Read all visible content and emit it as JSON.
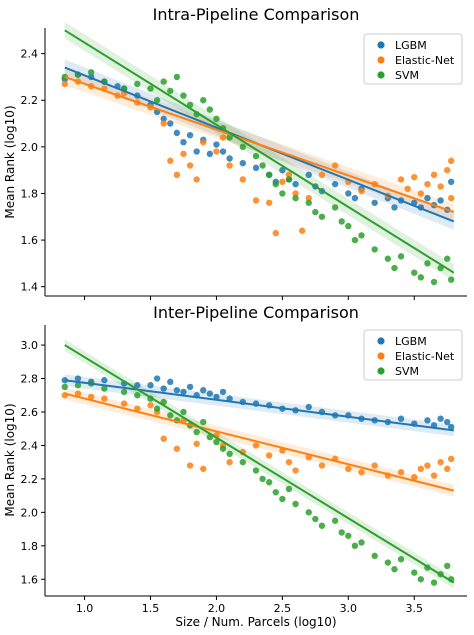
{
  "colors": {
    "LGBM": "#1f77b4",
    "Elastic-Net": "#ff7f0e",
    "SVM": "#2ca02c"
  },
  "xlabel": "Size / Num. Parcels (log10)",
  "xticks": [
    "1.0",
    "1.5",
    "2.0",
    "2.5",
    "3.0",
    "3.5"
  ],
  "chart_data": [
    {
      "type": "scatter",
      "title": "Intra-Pipeline Comparison",
      "xlabel": "",
      "ylabel": "Mean Rank (log10)",
      "xlim": [
        0.7,
        3.9
      ],
      "ylim": [
        1.36,
        2.51
      ],
      "yticks": [
        "1.4",
        "1.6",
        "1.8",
        "2.0",
        "2.2",
        "2.4"
      ],
      "legend_position": "top-right",
      "series": [
        {
          "name": "LGBM",
          "trend": [
            [
              0.85,
              2.34
            ],
            [
              3.8,
              1.68
            ]
          ],
          "points": [
            [
              0.85,
              2.29
            ],
            [
              0.95,
              2.31
            ],
            [
              1.05,
              2.3
            ],
            [
              1.15,
              2.28
            ],
            [
              1.25,
              2.26
            ],
            [
              1.3,
              2.25
            ],
            [
              1.4,
              2.22
            ],
            [
              1.5,
              2.18
            ],
            [
              1.55,
              2.15
            ],
            [
              1.6,
              2.12
            ],
            [
              1.65,
              2.1
            ],
            [
              1.7,
              2.06
            ],
            [
              1.75,
              2.02
            ],
            [
              1.8,
              2.05
            ],
            [
              1.85,
              1.98
            ],
            [
              1.9,
              2.03
            ],
            [
              1.95,
              1.97
            ],
            [
              2.0,
              2.01
            ],
            [
              2.05,
              1.98
            ],
            [
              2.1,
              1.95
            ],
            [
              2.2,
              1.93
            ],
            [
              2.3,
              1.91
            ],
            [
              2.4,
              1.88
            ],
            [
              2.45,
              1.85
            ],
            [
              2.5,
              1.9
            ],
            [
              2.55,
              1.86
            ],
            [
              2.6,
              1.84
            ],
            [
              2.7,
              1.88
            ],
            [
              2.75,
              1.83
            ],
            [
              2.8,
              1.81
            ],
            [
              2.9,
              1.84
            ],
            [
              3.0,
              1.8
            ],
            [
              3.05,
              1.78
            ],
            [
              3.1,
              1.82
            ],
            [
              3.2,
              1.76
            ],
            [
              3.3,
              1.78
            ],
            [
              3.35,
              1.74
            ],
            [
              3.4,
              1.77
            ],
            [
              3.5,
              1.76
            ],
            [
              3.55,
              1.74
            ],
            [
              3.6,
              1.78
            ],
            [
              3.65,
              1.75
            ],
            [
              3.7,
              1.77
            ],
            [
              3.75,
              1.73
            ],
            [
              3.78,
              1.85
            ]
          ]
        },
        {
          "name": "Elastic-Net",
          "trend": [
            [
              0.85,
              2.3
            ],
            [
              3.8,
              1.72
            ]
          ],
          "points": [
            [
              0.85,
              2.27
            ],
            [
              0.95,
              2.28
            ],
            [
              1.05,
              2.26
            ],
            [
              1.15,
              2.25
            ],
            [
              1.25,
              2.22
            ],
            [
              1.3,
              2.23
            ],
            [
              1.4,
              2.19
            ],
            [
              1.5,
              2.17
            ],
            [
              1.6,
              2.1
            ],
            [
              1.65,
              1.94
            ],
            [
              1.7,
              1.88
            ],
            [
              1.75,
              1.97
            ],
            [
              1.8,
              1.92
            ],
            [
              1.85,
              1.86
            ],
            [
              1.9,
              2.02
            ],
            [
              2.0,
              1.98
            ],
            [
              2.05,
              2.04
            ],
            [
              2.1,
              1.92
            ],
            [
              2.2,
              1.86
            ],
            [
              2.3,
              1.77
            ],
            [
              2.4,
              1.76
            ],
            [
              2.45,
              1.63
            ],
            [
              2.5,
              1.85
            ],
            [
              2.55,
              1.88
            ],
            [
              2.6,
              1.8
            ],
            [
              2.65,
              1.64
            ],
            [
              2.7,
              1.78
            ],
            [
              2.8,
              1.88
            ],
            [
              2.9,
              1.92
            ],
            [
              3.0,
              1.85
            ],
            [
              3.1,
              1.81
            ],
            [
              3.2,
              1.84
            ],
            [
              3.3,
              1.79
            ],
            [
              3.4,
              1.86
            ],
            [
              3.45,
              1.82
            ],
            [
              3.5,
              1.87
            ],
            [
              3.55,
              1.8
            ],
            [
              3.6,
              1.84
            ],
            [
              3.65,
              1.88
            ],
            [
              3.7,
              1.83
            ],
            [
              3.75,
              1.9
            ],
            [
              3.78,
              1.94
            ],
            [
              3.78,
              1.78
            ]
          ]
        },
        {
          "name": "SVM",
          "trend": [
            [
              0.85,
              2.5
            ],
            [
              3.8,
              1.46
            ]
          ],
          "points": [
            [
              0.85,
              2.3
            ],
            [
              0.95,
              2.31
            ],
            [
              1.05,
              2.32
            ],
            [
              1.15,
              2.28
            ],
            [
              1.3,
              2.25
            ],
            [
              1.4,
              2.27
            ],
            [
              1.5,
              2.25
            ],
            [
              1.55,
              2.2
            ],
            [
              1.6,
              2.28
            ],
            [
              1.65,
              2.24
            ],
            [
              1.7,
              2.3
            ],
            [
              1.75,
              2.22
            ],
            [
              1.8,
              2.18
            ],
            [
              1.85,
              2.14
            ],
            [
              1.9,
              2.2
            ],
            [
              1.95,
              2.16
            ],
            [
              2.0,
              2.12
            ],
            [
              2.05,
              2.08
            ],
            [
              2.1,
              2.04
            ],
            [
              2.2,
              2.0
            ],
            [
              2.3,
              1.96
            ],
            [
              2.35,
              1.92
            ],
            [
              2.4,
              1.88
            ],
            [
              2.45,
              1.84
            ],
            [
              2.5,
              1.8
            ],
            [
              2.55,
              1.86
            ],
            [
              2.6,
              1.78
            ],
            [
              2.7,
              1.76
            ],
            [
              2.75,
              1.72
            ],
            [
              2.8,
              1.7
            ],
            [
              2.9,
              1.74
            ],
            [
              2.95,
              1.68
            ],
            [
              3.0,
              1.66
            ],
            [
              3.05,
              1.6
            ],
            [
              3.1,
              1.62
            ],
            [
              3.2,
              1.56
            ],
            [
              3.3,
              1.52
            ],
            [
              3.35,
              1.48
            ],
            [
              3.4,
              1.53
            ],
            [
              3.5,
              1.46
            ],
            [
              3.55,
              1.44
            ],
            [
              3.6,
              1.5
            ],
            [
              3.65,
              1.42
            ],
            [
              3.7,
              1.48
            ],
            [
              3.75,
              1.52
            ],
            [
              3.78,
              1.43
            ]
          ]
        }
      ]
    },
    {
      "type": "scatter",
      "title": "Inter-Pipeline Comparison",
      "xlabel": "Size / Num. Parcels (log10)",
      "ylabel": "Mean Rank (log10)",
      "xlim": [
        0.7,
        3.9
      ],
      "ylim": [
        1.5,
        3.12
      ],
      "yticks": [
        "1.6",
        "1.8",
        "2.0",
        "2.2",
        "2.4",
        "2.6",
        "2.8",
        "3.0"
      ],
      "legend_position": "top-right",
      "series": [
        {
          "name": "LGBM",
          "trend": [
            [
              0.85,
              2.79
            ],
            [
              3.8,
              2.49
            ]
          ],
          "points": [
            [
              0.85,
              2.79
            ],
            [
              0.95,
              2.8
            ],
            [
              1.05,
              2.78
            ],
            [
              1.15,
              2.79
            ],
            [
              1.3,
              2.77
            ],
            [
              1.4,
              2.76
            ],
            [
              1.5,
              2.76
            ],
            [
              1.55,
              2.8
            ],
            [
              1.6,
              2.74
            ],
            [
              1.65,
              2.78
            ],
            [
              1.7,
              2.73
            ],
            [
              1.75,
              2.72
            ],
            [
              1.8,
              2.75
            ],
            [
              1.85,
              2.7
            ],
            [
              1.9,
              2.73
            ],
            [
              1.95,
              2.71
            ],
            [
              2.0,
              2.69
            ],
            [
              2.05,
              2.72
            ],
            [
              2.1,
              2.68
            ],
            [
              2.2,
              2.66
            ],
            [
              2.3,
              2.65
            ],
            [
              2.4,
              2.64
            ],
            [
              2.5,
              2.62
            ],
            [
              2.6,
              2.61
            ],
            [
              2.7,
              2.63
            ],
            [
              2.8,
              2.6
            ],
            [
              2.9,
              2.58
            ],
            [
              3.0,
              2.58
            ],
            [
              3.1,
              2.56
            ],
            [
              3.2,
              2.55
            ],
            [
              3.3,
              2.54
            ],
            [
              3.4,
              2.56
            ],
            [
              3.5,
              2.53
            ],
            [
              3.6,
              2.55
            ],
            [
              3.65,
              2.52
            ],
            [
              3.7,
              2.56
            ],
            [
              3.75,
              2.54
            ],
            [
              3.78,
              2.51
            ]
          ]
        },
        {
          "name": "Elastic-Net",
          "trend": [
            [
              0.85,
              2.71
            ],
            [
              3.8,
              2.13
            ]
          ],
          "points": [
            [
              0.85,
              2.7
            ],
            [
              0.95,
              2.71
            ],
            [
              1.05,
              2.69
            ],
            [
              1.15,
              2.68
            ],
            [
              1.3,
              2.65
            ],
            [
              1.4,
              2.62
            ],
            [
              1.5,
              2.64
            ],
            [
              1.55,
              2.6
            ],
            [
              1.6,
              2.44
            ],
            [
              1.7,
              2.38
            ],
            [
              1.75,
              2.55
            ],
            [
              1.8,
              2.28
            ],
            [
              1.85,
              2.41
            ],
            [
              1.9,
              2.26
            ],
            [
              2.0,
              2.46
            ],
            [
              2.05,
              2.4
            ],
            [
              2.1,
              2.3
            ],
            [
              2.2,
              2.36
            ],
            [
              2.3,
              2.4
            ],
            [
              2.4,
              2.34
            ],
            [
              2.5,
              2.37
            ],
            [
              2.55,
              2.3
            ],
            [
              2.6,
              2.25
            ],
            [
              2.7,
              2.33
            ],
            [
              2.8,
              2.28
            ],
            [
              2.9,
              2.32
            ],
            [
              3.0,
              2.26
            ],
            [
              3.1,
              2.24
            ],
            [
              3.2,
              2.28
            ],
            [
              3.3,
              2.22
            ],
            [
              3.4,
              2.24
            ],
            [
              3.5,
              2.21
            ],
            [
              3.55,
              2.26
            ],
            [
              3.6,
              2.28
            ],
            [
              3.65,
              2.22
            ],
            [
              3.7,
              2.3
            ],
            [
              3.75,
              2.26
            ],
            [
              3.78,
              2.32
            ]
          ]
        },
        {
          "name": "SVM",
          "trend": [
            [
              0.85,
              3.0
            ],
            [
              3.8,
              1.58
            ]
          ],
          "points": [
            [
              0.85,
              2.75
            ],
            [
              0.95,
              2.76
            ],
            [
              1.05,
              2.77
            ],
            [
              1.15,
              2.74
            ],
            [
              1.3,
              2.72
            ],
            [
              1.4,
              2.7
            ],
            [
              1.5,
              2.68
            ],
            [
              1.55,
              2.62
            ],
            [
              1.6,
              2.66
            ],
            [
              1.65,
              2.58
            ],
            [
              1.7,
              2.55
            ],
            [
              1.75,
              2.6
            ],
            [
              1.8,
              2.52
            ],
            [
              1.85,
              2.48
            ],
            [
              1.9,
              2.54
            ],
            [
              1.95,
              2.45
            ],
            [
              2.0,
              2.42
            ],
            [
              2.05,
              2.38
            ],
            [
              2.1,
              2.35
            ],
            [
              2.2,
              2.3
            ],
            [
              2.3,
              2.25
            ],
            [
              2.35,
              2.2
            ],
            [
              2.4,
              2.18
            ],
            [
              2.45,
              2.12
            ],
            [
              2.5,
              2.08
            ],
            [
              2.55,
              2.14
            ],
            [
              2.6,
              2.05
            ],
            [
              2.7,
              2.0
            ],
            [
              2.75,
              1.96
            ],
            [
              2.8,
              1.92
            ],
            [
              2.9,
              1.95
            ],
            [
              2.95,
              1.88
            ],
            [
              3.0,
              1.86
            ],
            [
              3.05,
              1.8
            ],
            [
              3.1,
              1.82
            ],
            [
              3.2,
              1.74
            ],
            [
              3.3,
              1.7
            ],
            [
              3.35,
              1.66
            ],
            [
              3.4,
              1.72
            ],
            [
              3.5,
              1.64
            ],
            [
              3.55,
              1.6
            ],
            [
              3.6,
              1.67
            ],
            [
              3.65,
              1.58
            ],
            [
              3.7,
              1.63
            ],
            [
              3.75,
              1.68
            ],
            [
              3.78,
              1.6
            ]
          ]
        }
      ]
    }
  ]
}
